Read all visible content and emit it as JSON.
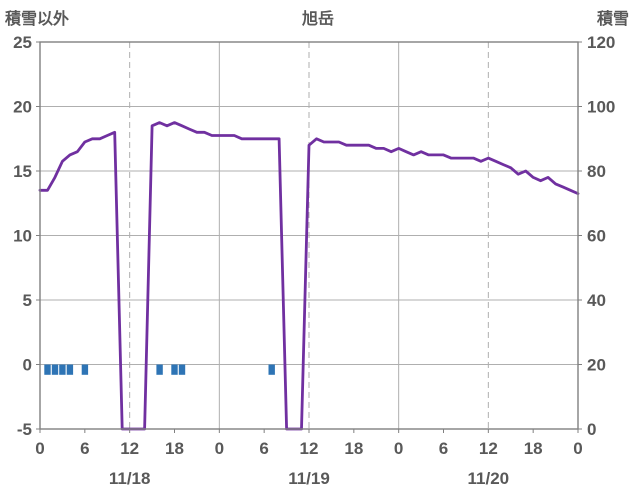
{
  "chart_data": {
    "type": "line",
    "title": "旭岳",
    "left_axis": {
      "label": "積雪以外",
      "min": -5,
      "max": 25,
      "ticks": [
        25,
        20,
        15,
        10,
        5,
        0,
        -5
      ]
    },
    "right_axis": {
      "label": "積雪",
      "min": 0,
      "max": 120,
      "ticks": [
        120,
        100,
        80,
        60,
        40,
        20,
        0
      ]
    },
    "x_axis": {
      "min": 0,
      "max": 72,
      "tick_step": 6,
      "tick_labels": [
        "0",
        "6",
        "12",
        "18",
        "0",
        "6",
        "12",
        "18",
        "0",
        "6",
        "12",
        "18",
        "0"
      ],
      "date_labels": [
        {
          "label": "11/18",
          "hour": 12
        },
        {
          "label": "11/19",
          "hour": 36
        },
        {
          "label": "11/20",
          "hour": 60
        }
      ],
      "solid_gridline_hours": [
        24,
        48
      ],
      "dashed_gridline_hours": [
        12,
        36,
        60
      ]
    },
    "series": [
      {
        "name": "積雪",
        "kind": "line",
        "axis": "right",
        "color": "#7030A0",
        "x_start": 0,
        "x_step": 1,
        "values": [
          74,
          74,
          78,
          83,
          85,
          86,
          89,
          90,
          90,
          91,
          92,
          0,
          0,
          0,
          0,
          94,
          95,
          94,
          95,
          94,
          93,
          92,
          92,
          91,
          91,
          91,
          91,
          90,
          90,
          90,
          90,
          90,
          90,
          0,
          0,
          0,
          88,
          90,
          89,
          89,
          89,
          88,
          88,
          88,
          88,
          87,
          87,
          86,
          87,
          86,
          85,
          86,
          85,
          85,
          85,
          84,
          84,
          84,
          84,
          83,
          84,
          83,
          82,
          81,
          79,
          80,
          78,
          77,
          78,
          76,
          75,
          74,
          73
        ]
      },
      {
        "name": "積雪以外",
        "kind": "bar",
        "axis": "left",
        "color": "#2E74B5",
        "bar_width_hours": 0.85,
        "bars": [
          {
            "x": 1,
            "v": -0.8
          },
          {
            "x": 2,
            "v": -0.8
          },
          {
            "x": 3,
            "v": -0.8
          },
          {
            "x": 4,
            "v": -0.8
          },
          {
            "x": 6,
            "v": -0.8
          },
          {
            "x": 16,
            "v": -0.8
          },
          {
            "x": 18,
            "v": -0.8
          },
          {
            "x": 19,
            "v": -0.8
          },
          {
            "x": 31,
            "v": -0.8
          }
        ]
      }
    ],
    "colors": {
      "text": "#595959",
      "grid": "#AFAFAF",
      "border": "#808080",
      "background": "#FFFFFF"
    },
    "layout_hints": {
      "grid": true,
      "legend": false,
      "dashed_vertical_at_noon": true
    }
  }
}
